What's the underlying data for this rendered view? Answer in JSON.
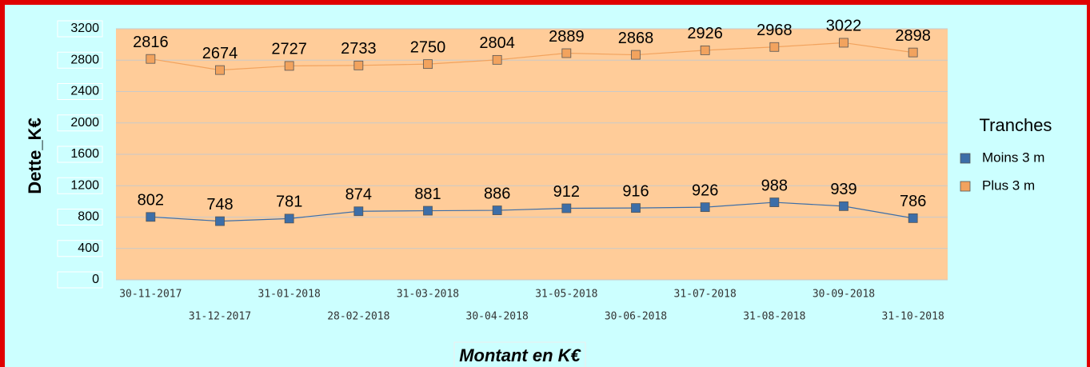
{
  "chart_data": {
    "type": "line",
    "y_label": "Dette_K€",
    "x_label": "Montant en K€",
    "legend_title": "Tranches",
    "legend_position": "right",
    "categories": [
      "30-11-2017",
      "31-12-2017",
      "31-01-2018",
      "28-02-2018",
      "31-03-2018",
      "30-04-2018",
      "31-05-2018",
      "30-06-2018",
      "31-07-2018",
      "31-08-2018",
      "30-09-2018",
      "31-10-2018"
    ],
    "series": [
      {
        "name": "Moins 3 m",
        "color": "#3c6ea8",
        "values": [
          802,
          748,
          781,
          874,
          881,
          886,
          912,
          916,
          926,
          988,
          939,
          786
        ]
      },
      {
        "name": "Plus 3 m",
        "color": "#f2a35e",
        "values": [
          2816,
          2674,
          2727,
          2733,
          2750,
          2804,
          2889,
          2868,
          2926,
          2968,
          3022,
          2898
        ]
      }
    ],
    "ylim": [
      0,
      3200
    ],
    "yticks": [
      0,
      400,
      800,
      1200,
      1600,
      2000,
      2400,
      2800,
      3200
    ],
    "grid": true
  }
}
